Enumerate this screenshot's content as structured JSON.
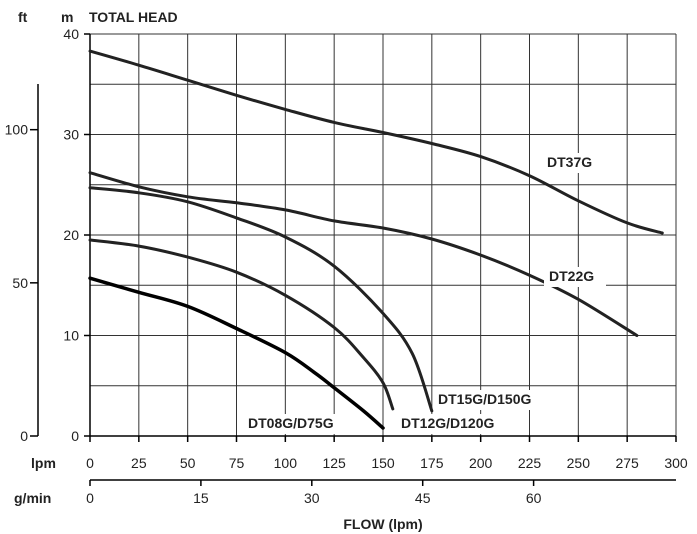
{
  "chart_data": {
    "type": "line",
    "title": "TOTAL HEAD",
    "xlabel": "FLOW (lpm)",
    "x_unit_primary": "lpm",
    "x_unit_secondary": "g/min",
    "y_unit_primary": "m",
    "y_unit_secondary": "ft",
    "xlim": [
      0,
      300
    ],
    "ylim": [
      0,
      40
    ],
    "x_ticks": [
      0,
      25,
      50,
      75,
      100,
      125,
      150,
      175,
      200,
      225,
      250,
      275,
      300
    ],
    "y_ticks": [
      0,
      10,
      20,
      30,
      40
    ],
    "gmin_ticks": [
      0,
      15,
      30,
      45,
      60
    ],
    "ft_ticks": [
      0,
      50,
      100
    ],
    "grid": true,
    "series": [
      {
        "name": "DT37G",
        "x": [
          0,
          25,
          50,
          75,
          100,
          125,
          150,
          175,
          200,
          225,
          250,
          275,
          293
        ],
        "y": [
          38.3,
          36.9,
          35.4,
          33.9,
          32.5,
          31.2,
          30.2,
          29.1,
          27.8,
          25.9,
          23.4,
          21.2,
          20.2
        ]
      },
      {
        "name": "DT22G",
        "x": [
          0,
          25,
          50,
          75,
          100,
          125,
          150,
          175,
          200,
          225,
          250,
          280
        ],
        "y": [
          26.2,
          24.8,
          23.8,
          23.2,
          22.5,
          21.4,
          20.7,
          19.6,
          18.0,
          16.0,
          13.6,
          10.0
        ]
      },
      {
        "name": "DT15G/D150G",
        "x": [
          0,
          25,
          50,
          75,
          100,
          125,
          150,
          165,
          175
        ],
        "y": [
          24.7,
          24.2,
          23.3,
          21.7,
          19.8,
          16.9,
          12.2,
          8.2,
          2.5
        ]
      },
      {
        "name": "DT12G/D120G",
        "x": [
          0,
          25,
          50,
          75,
          100,
          125,
          140,
          150,
          155
        ],
        "y": [
          19.5,
          18.9,
          17.8,
          16.3,
          14.0,
          10.8,
          7.8,
          5.3,
          2.7
        ]
      },
      {
        "name": "DT08G/D75G",
        "x": [
          0,
          25,
          50,
          75,
          100,
          115,
          125,
          140,
          150
        ],
        "y": [
          15.7,
          14.3,
          12.9,
          10.7,
          8.3,
          6.3,
          4.8,
          2.5,
          0.8
        ]
      }
    ]
  }
}
